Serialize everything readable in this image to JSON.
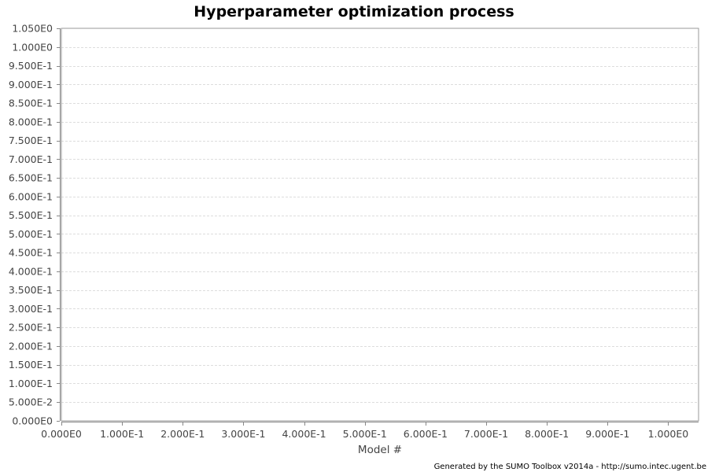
{
  "chart_data": {
    "type": "line",
    "title": "Hyperparameter optimization process",
    "xlabel": "Model #",
    "ylabel": "",
    "xlim": [
      0,
      1.05
    ],
    "ylim": [
      0,
      1.05
    ],
    "x_ticks": [
      0,
      0.1,
      0.2,
      0.3,
      0.4,
      0.5,
      0.6,
      0.7,
      0.8,
      0.9,
      1.0
    ],
    "x_tick_labels": [
      "0.000E0",
      "1.000E-1",
      "2.000E-1",
      "3.000E-1",
      "4.000E-1",
      "5.000E-1",
      "6.000E-1",
      "7.000E-1",
      "8.000E-1",
      "9.000E-1",
      "1.000E0"
    ],
    "y_ticks": [
      0,
      0.05,
      0.1,
      0.15,
      0.2,
      0.25,
      0.3,
      0.35,
      0.4,
      0.45,
      0.5,
      0.55,
      0.6,
      0.65,
      0.7,
      0.75,
      0.8,
      0.85,
      0.9,
      0.95,
      1.0,
      1.05
    ],
    "y_tick_labels": [
      "0.000E0",
      "5.000E-2",
      "1.000E-1",
      "1.500E-1",
      "2.000E-1",
      "2.500E-1",
      "3.000E-1",
      "3.500E-1",
      "4.000E-1",
      "4.500E-1",
      "5.000E-1",
      "5.500E-1",
      "6.000E-1",
      "6.500E-1",
      "7.000E-1",
      "7.500E-1",
      "8.000E-1",
      "8.500E-1",
      "9.000E-1",
      "9.500E-1",
      "1.000E0",
      "1.050E0"
    ],
    "grid": true,
    "legend": "none",
    "series": []
  },
  "footer": {
    "credit": "Generated by the SUMO Toolbox v2014a - http://sumo.intec.ugent.be"
  },
  "colors": {
    "grid": "#dddddd",
    "axis": "#888888",
    "plot_border": "#999999",
    "tick_text": "#444444"
  }
}
